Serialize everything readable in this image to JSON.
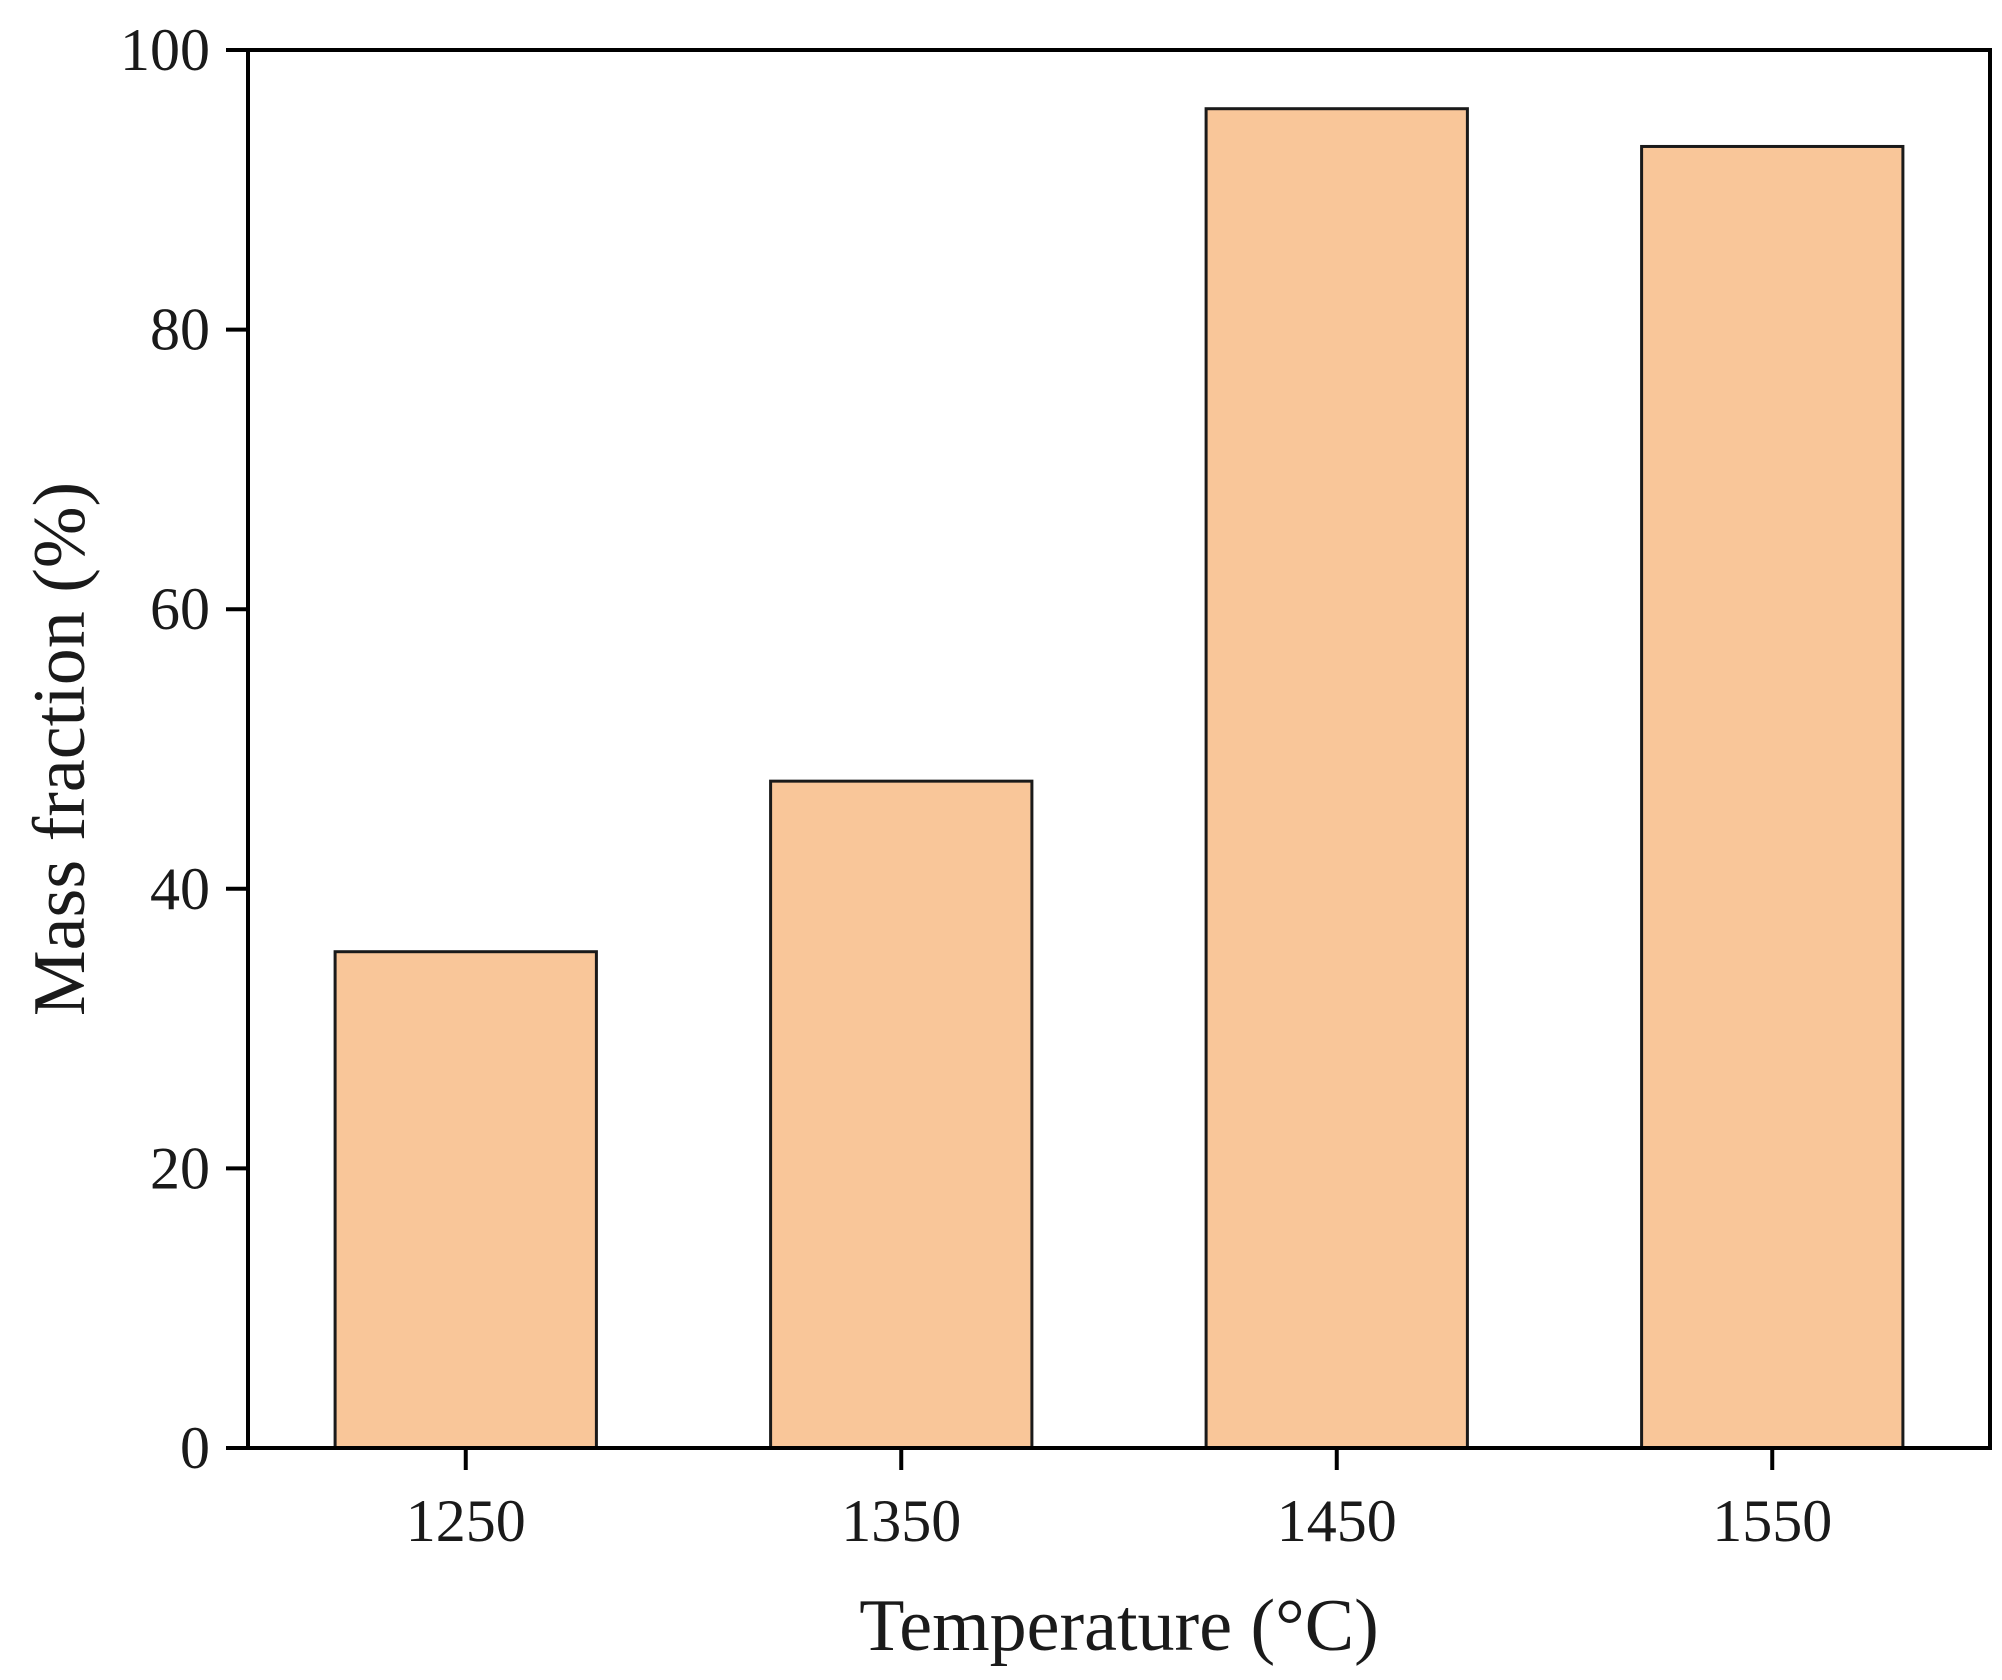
{
  "chart_data": {
    "type": "bar",
    "categories": [
      "1250",
      "1350",
      "1450",
      "1550"
    ],
    "values": [
      35.5,
      47.7,
      95.8,
      93.1
    ],
    "xlabel": "Temperature (°C)",
    "ylabel": "Mass fraction (%)",
    "ylim": [
      0,
      100
    ],
    "yticks": [
      "0",
      "20",
      "40",
      "60",
      "80",
      "100"
    ],
    "grid": false,
    "legend": "none",
    "colors": {
      "bar_fill": "#F9C699",
      "bar_stroke": "#1a1a1a",
      "axis": "#000000"
    }
  }
}
